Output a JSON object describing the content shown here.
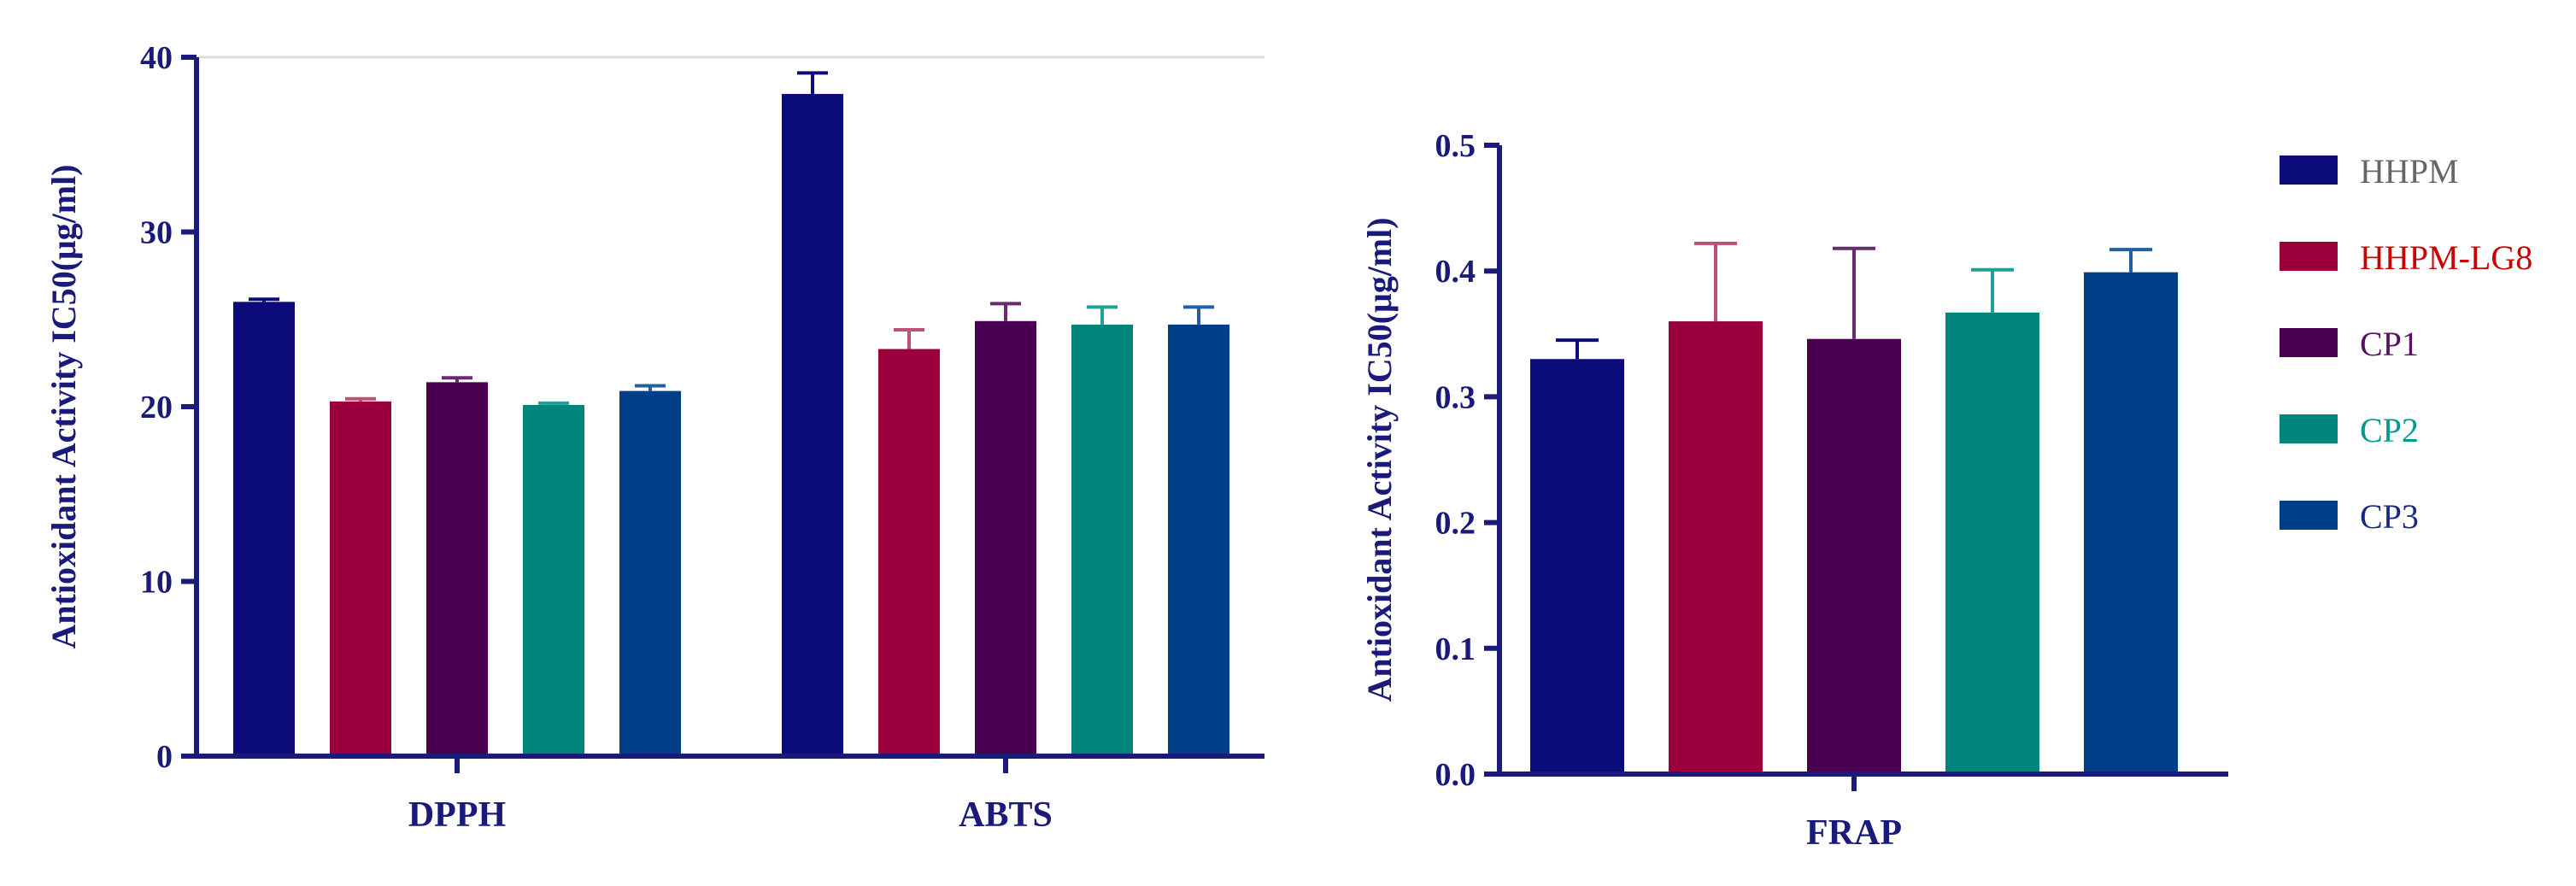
{
  "chart_data": [
    {
      "type": "bar",
      "ylabel": "Antioxidant Activity IC50(μg/ml)",
      "categories": [
        "DPPH",
        "ABTS"
      ],
      "ylim": [
        0,
        40
      ],
      "yticks": [
        0,
        10,
        20,
        30,
        40
      ],
      "grid": "top-line-only",
      "series": [
        {
          "name": "HHPM",
          "values": [
            26.0,
            37.9
          ],
          "errors": [
            0.15,
            1.2
          ]
        },
        {
          "name": "HHPM-LG8",
          "values": [
            20.3,
            23.3
          ],
          "errors": [
            0.15,
            1.1
          ]
        },
        {
          "name": "CP1",
          "values": [
            21.4,
            24.9
          ],
          "errors": [
            0.25,
            1.0
          ]
        },
        {
          "name": "CP2",
          "values": [
            20.1,
            24.7
          ],
          "errors": [
            0.1,
            1.0
          ]
        },
        {
          "name": "CP3",
          "values": [
            20.9,
            24.7
          ],
          "errors": [
            0.3,
            1.0
          ]
        }
      ]
    },
    {
      "type": "bar",
      "ylabel": "Antioxidant Activity IC50(μg/ml)",
      "categories": [
        "FRAP"
      ],
      "ylim": [
        0,
        0.5
      ],
      "yticks": [
        "0.0",
        "0.1",
        "0.2",
        "0.3",
        "0.4",
        "0.5"
      ],
      "series": [
        {
          "name": "HHPM",
          "values": [
            0.33
          ],
          "errors": [
            0.015
          ]
        },
        {
          "name": "HHPM-LG8",
          "values": [
            0.36
          ],
          "errors": [
            0.062
          ]
        },
        {
          "name": "CP1",
          "values": [
            0.346
          ],
          "errors": [
            0.072
          ]
        },
        {
          "name": "CP2",
          "values": [
            0.367
          ],
          "errors": [
            0.034
          ]
        },
        {
          "name": "CP3",
          "values": [
            0.399
          ],
          "errors": [
            0.018
          ]
        }
      ]
    }
  ],
  "legend": {
    "placement": "right",
    "items": [
      {
        "label": "HHPM",
        "swatch": "#0b0b7a",
        "text_color": "#666666"
      },
      {
        "label": "HHPM-LG8",
        "swatch": "#9b003d",
        "text_color": "#cc0000"
      },
      {
        "label": "CP1",
        "swatch": "#4a0050",
        "text_color": "#5a1060"
      },
      {
        "label": "CP2",
        "swatch": "#00857d",
        "text_color": "#009a90"
      },
      {
        "label": "CP3",
        "swatch": "#003f87",
        "text_color": "#1a2a80"
      }
    ]
  },
  "colors": {
    "axis": "#1a1a7a",
    "error_bar": [
      "#0b0b7a",
      "#c05070",
      "#6a2a70",
      "#20a098",
      "#2060a0"
    ]
  }
}
